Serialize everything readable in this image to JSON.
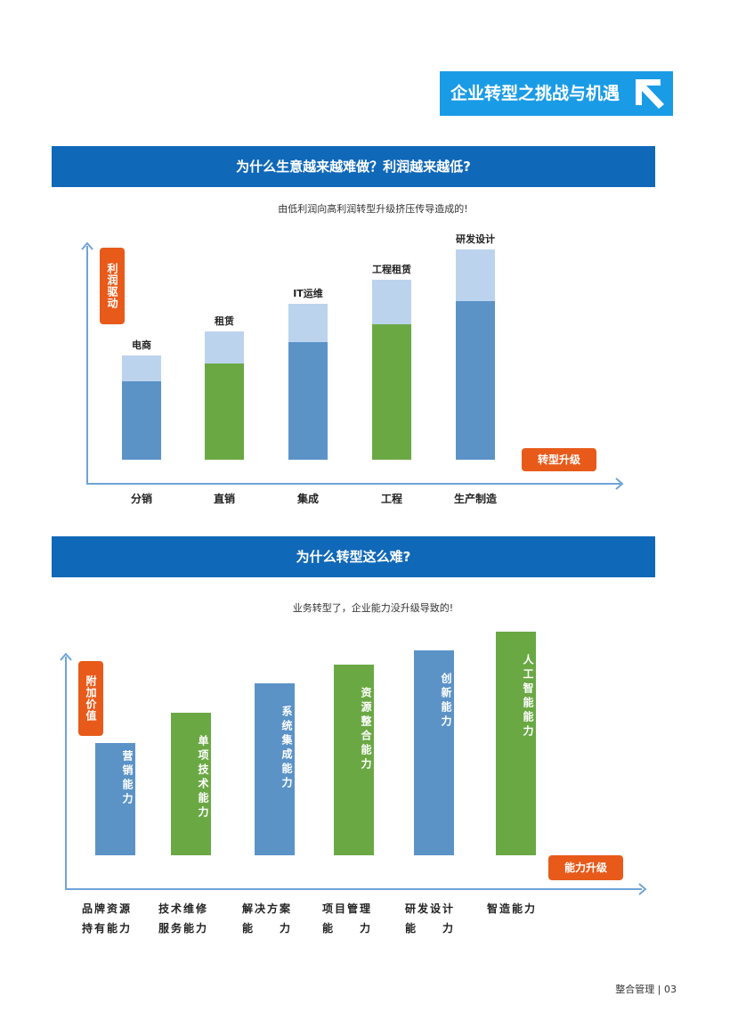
{
  "header": {
    "title": "企业转型之挑战与机遇",
    "icon": "arrow-up-left-icon"
  },
  "section1": {
    "title": "为什么生意越来越难做？利润越来越低?",
    "subtitle": "由低利润向高利润转型升级挤压传导造成的!"
  },
  "section2": {
    "title": "为什么转型这么难?",
    "subtitle": "业务转型了，企业能力没升级导致的!"
  },
  "colors": {
    "blue": "#5b93c7",
    "light_blue": "#bcd3ee",
    "green": "#6aa844",
    "orange": "#e85a1a",
    "section_bar": "#1068b8",
    "title_box": "#1a9be6"
  },
  "chart_data": [
    {
      "type": "bar",
      "stacked": true,
      "ylabel": "利润驱动",
      "xlabel": "转型升级",
      "categories": [
        "分销",
        "直销",
        "集成",
        "工程",
        "生产制造"
      ],
      "bar_labels": [
        "电商",
        "租赁",
        "IT运维",
        "工程租赁",
        "研发设计"
      ],
      "base_colors": [
        "blue",
        "green",
        "blue",
        "green",
        "blue"
      ],
      "series": [
        {
          "values": [
            88,
            108,
            132,
            152,
            178
          ]
        },
        {
          "values": [
            29,
            36,
            43,
            50,
            58
          ]
        }
      ],
      "ylim": [
        0,
        250
      ],
      "grid": false
    },
    {
      "type": "bar",
      "ylabel": "附加价值",
      "xlabel": "能力升级",
      "categories": [
        [
          "品牌资源",
          "持有能力"
        ],
        [
          "技术维修",
          "服务能力"
        ],
        [
          "解决方案",
          "能　　力"
        ],
        [
          "项目管理",
          "能　　力"
        ],
        [
          "研发设计",
          "能　　力"
        ],
        [
          "智造能力",
          ""
        ]
      ],
      "bar_labels": [
        "营销能力",
        "单项技术能力",
        "系统集成能力",
        "资源整合能力",
        "创新能力",
        "人工智能能力"
      ],
      "colors": [
        "blue",
        "green",
        "blue",
        "green",
        "blue",
        "green"
      ],
      "values": [
        126,
        160,
        193,
        214,
        230,
        251
      ],
      "ylim": [
        0,
        260
      ],
      "grid": false
    }
  ],
  "footer": {
    "text": "整合管理 | 03"
  }
}
